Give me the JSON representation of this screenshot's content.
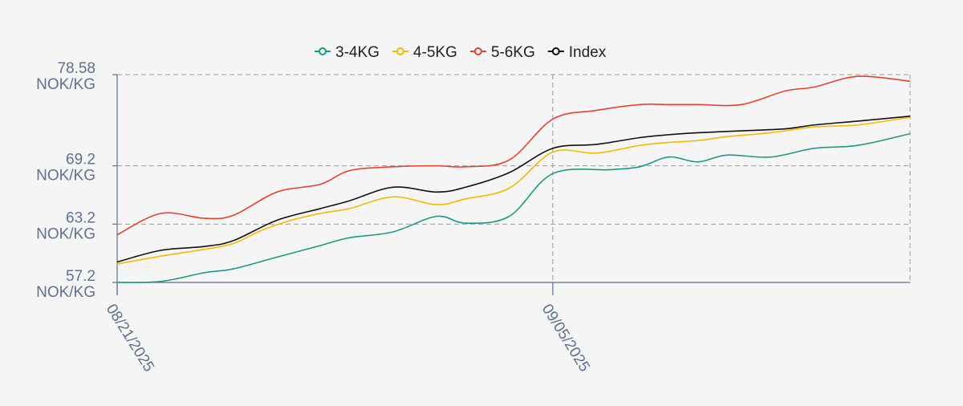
{
  "chart_data": {
    "type": "line",
    "title": "",
    "xlabel": "",
    "ylabel": "",
    "ylim": [
      57.2,
      78.58
    ],
    "y_ticks": [
      {
        "value": 57.2,
        "line1": "57.2",
        "line2": "NOK/KG"
      },
      {
        "value": 63.2,
        "line1": "63.2",
        "line2": "NOK/KG"
      },
      {
        "value": 69.2,
        "line1": "69.2",
        "line2": "NOK/KG"
      },
      {
        "value": 78.58,
        "line1": "78.58",
        "line2": "NOK/KG"
      }
    ],
    "x_ticks": [
      {
        "x": 0,
        "label": "08/21/2025"
      },
      {
        "x": 15,
        "label": "09/05/2025"
      }
    ],
    "x_range": [
      0,
      27.3
    ],
    "grid": true,
    "legend_position": "top-center",
    "series": [
      {
        "name": "3-4KG",
        "color": "#1a9a88",
        "x": [
          0,
          1.5,
          3,
          4,
          5.5,
          7,
          8,
          9.5,
          11,
          12,
          13.5,
          15,
          17,
          18,
          19,
          20,
          21,
          22.5,
          24,
          25.5,
          27.3
        ],
        "values": [
          57.2,
          57.3,
          58.2,
          58.6,
          59.8,
          61.0,
          61.8,
          62.4,
          64.0,
          63.3,
          64.0,
          68.4,
          68.8,
          69.1,
          70.1,
          69.6,
          70.3,
          70.1,
          71.0,
          71.3,
          72.5
        ]
      },
      {
        "name": "4-5KG",
        "color": "#f5b800",
        "x": [
          0,
          1.5,
          3,
          4,
          5,
          6,
          7,
          8,
          9.5,
          11,
          12,
          13.5,
          15,
          16.5,
          18,
          19,
          20,
          21,
          22.5,
          24,
          25.5,
          27.3
        ],
        "values": [
          59.1,
          59.9,
          60.6,
          61.2,
          62.6,
          63.6,
          64.3,
          64.8,
          66.0,
          65.2,
          65.8,
          66.9,
          70.6,
          70.5,
          71.3,
          71.6,
          71.8,
          72.2,
          72.6,
          73.2,
          73.4,
          74.2
        ]
      },
      {
        "name": "5-6KG",
        "color": "#e8412f",
        "x": [
          0,
          1.5,
          3,
          4,
          5.5,
          7,
          8,
          9.5,
          11,
          12,
          13.5,
          15,
          16.5,
          18,
          19,
          20,
          21.5,
          23,
          24,
          25.5,
          27.3
        ],
        "values": [
          62.1,
          64.3,
          63.8,
          64.1,
          66.5,
          67.3,
          68.7,
          69.1,
          69.2,
          69.1,
          69.8,
          74.0,
          74.9,
          75.5,
          75.5,
          75.5,
          75.5,
          76.9,
          77.3,
          78.4,
          77.9
        ]
      },
      {
        "name": "Index",
        "color": "#111111",
        "x": [
          0,
          1.5,
          3,
          4,
          5.5,
          7,
          8,
          9.5,
          11,
          12,
          13.5,
          15,
          16.5,
          18,
          19,
          20,
          21.5,
          23,
          24,
          25.5,
          27.3
        ],
        "values": [
          59.3,
          60.5,
          60.9,
          61.5,
          63.6,
          64.8,
          65.6,
          67.0,
          66.5,
          67.0,
          68.5,
          71.0,
          71.4,
          72.1,
          72.4,
          72.6,
          72.8,
          73.0,
          73.4,
          73.8,
          74.3
        ]
      }
    ]
  }
}
